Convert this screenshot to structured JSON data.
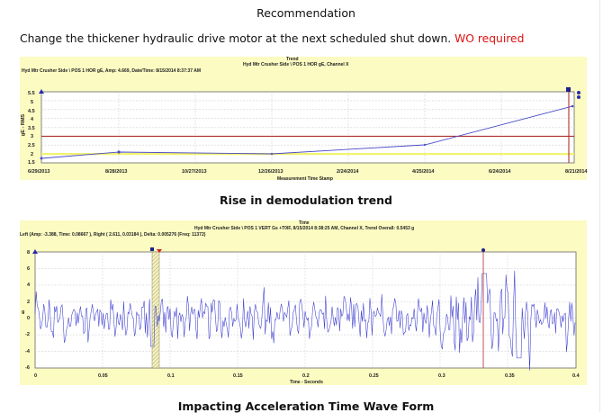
{
  "page": {
    "title": "Recommendation",
    "recommendation_text": "Change the thickener hydraulic drive motor at the next scheduled shut down.",
    "recommendation_flag": "WO required",
    "caption_trend": "Rise in demodulation trend",
    "caption_waveform": "Impacting Acceleration Time Wave Form"
  },
  "colors": {
    "panel_bg": "#fbfbc2",
    "trend_line": "#4a4ac8",
    "alarm_red": "#b03030",
    "alert_yellow": "#f2f270",
    "waveform": "#3a3ad0",
    "flag_red": "#e01010"
  },
  "trend_chart": {
    "window_title": "Trend",
    "header_right": "Hyd Mtr Crusher Side \\ POS 1 HOR gE, Channel X",
    "header_left": "Hyd Mtr Crusher Side \\ POS 1 HOR gE, Amp: 4.669, Date/Time: 8/15/2014 8:37:37 AM",
    "ylabel": "gE - RMS",
    "xlabel": "Measurement Time Stamp",
    "yticks": [
      "5.5",
      "5",
      "4.5",
      "4",
      "3.5",
      "3",
      "2.5",
      "2",
      "1.5"
    ],
    "xticks": [
      "6/29/2013",
      "8/28/2013",
      "10/27/2013",
      "12/26/2013",
      "2/24/2014",
      "4/25/2014",
      "6/24/2014",
      "8/21/2014"
    ]
  },
  "waveform_chart": {
    "window_title": "Time",
    "header_right": "Hyd Mtr Crusher Side \\ POS 1 VERT Gs +T0IF, 8/15/2014 8:38:25 AM, Channel X, Trend Overall: 0.5453 g",
    "header_left": "Left (Amp: -3.388, Time: 0.08667 ), Right ( 2.611, 0.03184 ), Delta: 0.005276 (Freq: 11372)",
    "ylabel": "g",
    "xlabel": "Time - Seconds",
    "yticks": [
      "8",
      "6",
      "4",
      "2",
      "0",
      "-2",
      "-4",
      "-6"
    ],
    "xticks": [
      "0",
      "0.05",
      "0.1",
      "0.15",
      "0.2",
      "0.25",
      "0.3",
      "0.35",
      "0.4"
    ]
  },
  "chart_data": [
    {
      "type": "line",
      "title": "Trend - Hyd Mtr Crusher Side \\ POS 1 HOR gE, Channel X",
      "xlabel": "Measurement Time Stamp",
      "ylabel": "gE - RMS",
      "x": [
        "6/29/2013",
        "8/28/2013",
        "12/26/2013",
        "4/25/2014",
        "8/15/2014"
      ],
      "series": [
        {
          "name": "gE RMS",
          "values": [
            1.75,
            2.1,
            2.0,
            2.5,
            4.67
          ]
        }
      ],
      "thresholds": [
        {
          "name": "Alarm",
          "value": 3.0,
          "color": "#b03030"
        },
        {
          "name": "Alert",
          "value": 2.0,
          "color": "#f2f270"
        }
      ],
      "ylim": [
        1.5,
        5.5
      ],
      "xticks": [
        "6/29/2013",
        "8/28/2013",
        "10/27/2013",
        "12/26/2013",
        "2/24/2014",
        "4/25/2014",
        "6/24/2014",
        "8/21/2014"
      ],
      "grid": true,
      "legend": "none"
    },
    {
      "type": "line",
      "title": "Time - Hyd Mtr Crusher Side \\ POS 1 VERT Gs +T0IF, 8/15/2014 8:38:25 AM, Channel X, Trend Overall: 0.5453 g",
      "xlabel": "Time - Seconds",
      "ylabel": "g",
      "x_range": [
        0,
        0.4
      ],
      "ylim": [
        -8,
        8
      ],
      "series": [
        {
          "name": "Acceleration waveform",
          "description": "Oscillating signal mostly within ±2.5 g with impacting peaks reaching ~5.5 g near 0.33 s and ~ -5 g near 0.36 s"
        }
      ],
      "cursors": [
        {
          "name": "Left cursor band",
          "x_start": 0.085,
          "x_end": 0.091,
          "amp": -3.388
        },
        {
          "name": "Marker",
          "x": 0.33
        }
      ],
      "xticks": [
        "0",
        "0.05",
        "0.1",
        "0.15",
        "0.2",
        "0.25",
        "0.3",
        "0.35",
        "0.4"
      ],
      "grid": true
    }
  ]
}
